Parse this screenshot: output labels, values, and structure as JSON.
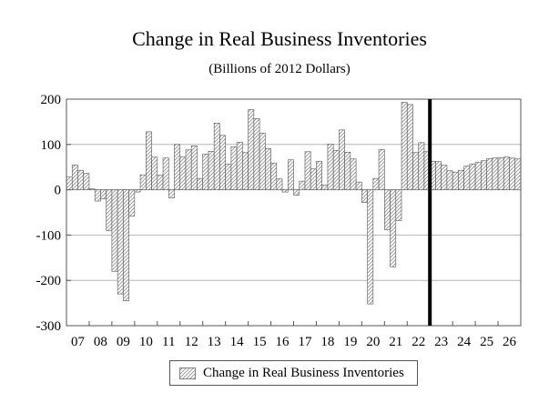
{
  "chart_data": {
    "type": "bar",
    "title": "Change in Real Business Inventories",
    "subtitle": "(Billions of 2012 Dollars)",
    "xlabel": "",
    "ylabel": "",
    "ylim": [
      -300,
      200
    ],
    "yticks": [
      200,
      100,
      0,
      -100,
      -200,
      -300
    ],
    "ytick_labels": [
      "200",
      "100",
      "0",
      "-100",
      "-200",
      "-300"
    ],
    "year_labels": [
      "07",
      "08",
      "09",
      "10",
      "11",
      "12",
      "13",
      "14",
      "15",
      "16",
      "17",
      "18",
      "19",
      "20",
      "21",
      "22",
      "23",
      "24",
      "25",
      "26"
    ],
    "periods_per_label": 4,
    "forecast_start_label": "23",
    "grid": true,
    "legend_position": "bottom-center",
    "series": [
      {
        "name": "Change in Real Business Inventories",
        "fill": "hatched",
        "values": [
          28,
          55,
          43,
          36,
          2,
          -25,
          -20,
          -90,
          -180,
          -230,
          -245,
          -58,
          -5,
          33,
          128,
          72,
          32,
          70,
          -18,
          100,
          72,
          88,
          97,
          25,
          79,
          85,
          147,
          120,
          57,
          95,
          105,
          82,
          177,
          157,
          125,
          91,
          59,
          24,
          -5,
          66,
          -12,
          19,
          84,
          46,
          63,
          10,
          101,
          87,
          132,
          83,
          68,
          17,
          -28,
          -252,
          25,
          89,
          -88,
          -170,
          -68,
          193,
          188,
          82,
          104,
          84,
          63,
          62,
          54,
          42,
          39,
          43,
          52,
          57,
          61,
          64,
          69,
          70,
          71,
          72,
          70,
          68
        ]
      }
    ]
  }
}
